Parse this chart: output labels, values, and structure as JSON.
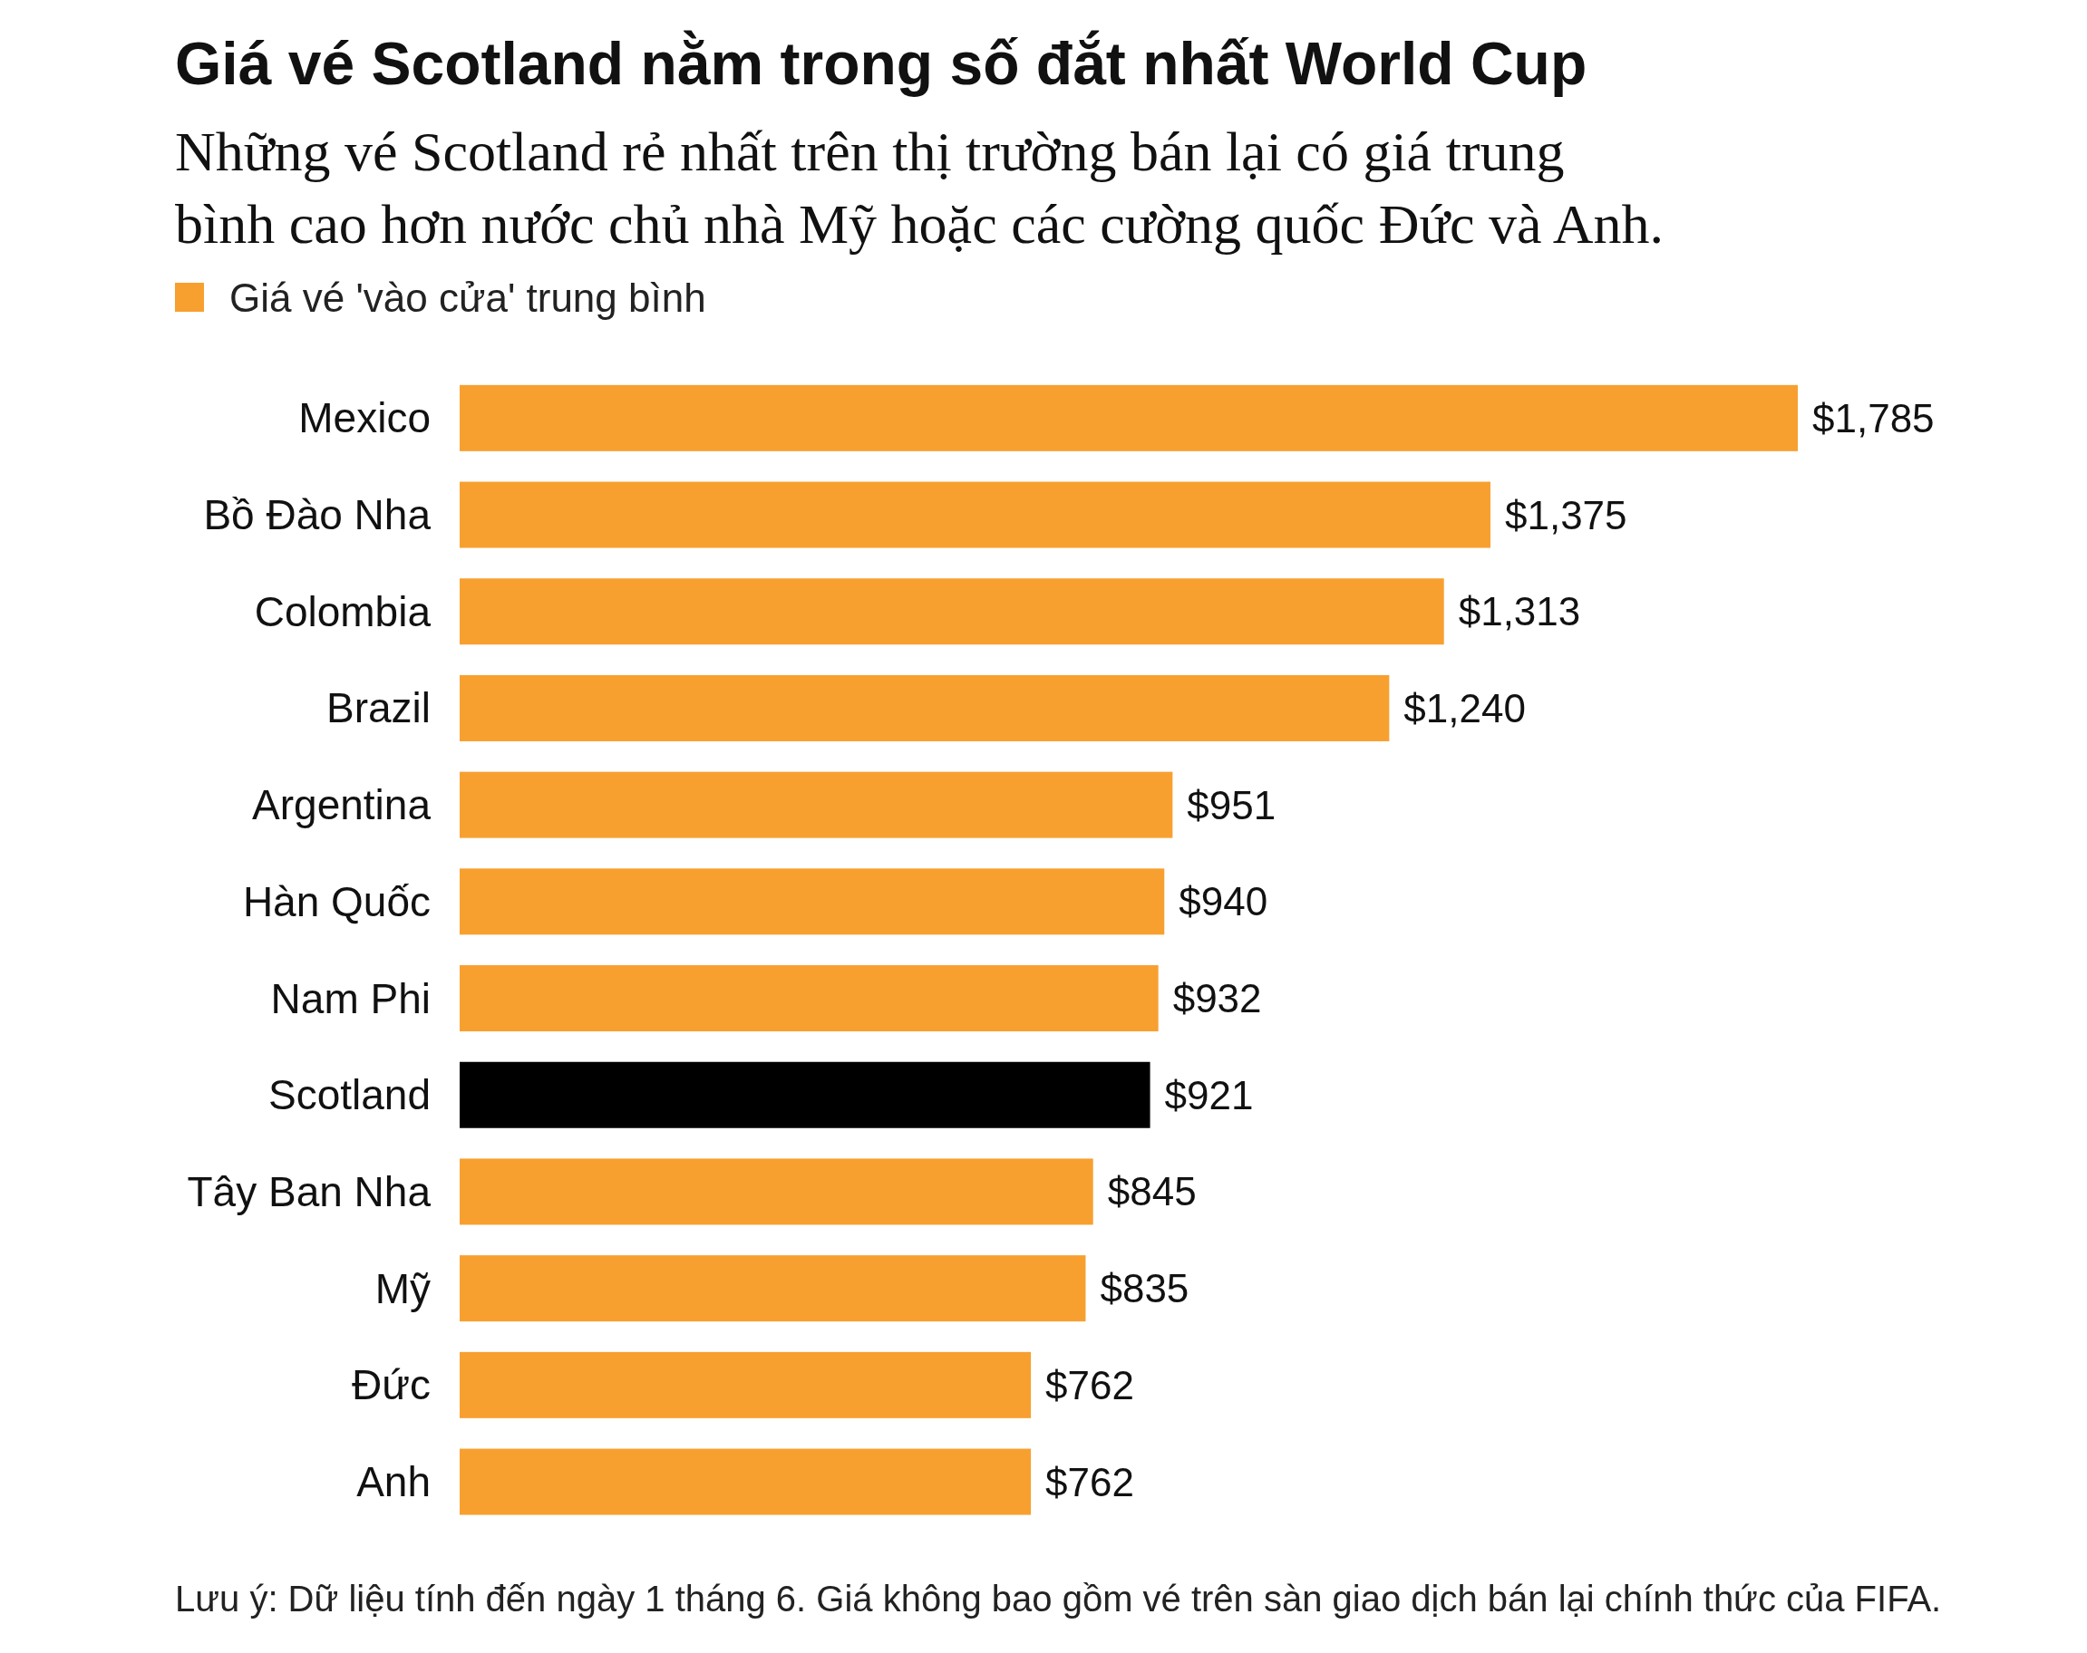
{
  "chart_data": {
    "type": "bar",
    "orientation": "horizontal",
    "title": "Giá vé Scotland nằm trong số đắt nhất World Cup",
    "subtitle": "Những vé Scotland rẻ nhất trên thị trường bán lại có giá trung bình cao hơn nước chủ nhà Mỹ hoặc các cường quốc Đức và Anh.",
    "categories": [
      "Mexico",
      "Bồ Đào Nha",
      "Colombia",
      "Brazil",
      "Argentina",
      "Hàn Quốc",
      "Nam Phi",
      "Scotland",
      "Tây Ban Nha",
      "Mỹ",
      "Đức",
      "Anh"
    ],
    "series": [
      {
        "name": "Giá vé 'vào cửa' trung bình",
        "color": "#f7a030",
        "values": [
          1785,
          1375,
          1313,
          1240,
          951,
          940,
          932,
          921,
          845,
          835,
          762,
          762
        ],
        "colors": [
          "#f7a030",
          "#f7a030",
          "#f7a030",
          "#f7a030",
          "#f7a030",
          "#f7a030",
          "#f7a030",
          "#000000",
          "#f7a030",
          "#f7a030",
          "#f7a030",
          "#f7a030"
        ],
        "value_labels": [
          "$1,785",
          "$1,375",
          "$1,313",
          "$1,240",
          "$951",
          "$940",
          "$932",
          "$921",
          "$845",
          "$835",
          "$762",
          "$762"
        ]
      }
    ],
    "legend": "top left",
    "annotations": [
      "Lưu ý: Dữ liệu tính đến ngày 1 tháng 6. Giá không bao gồm vé trên sàn giao dịch bán lại chính thức của FIFA."
    ]
  }
}
